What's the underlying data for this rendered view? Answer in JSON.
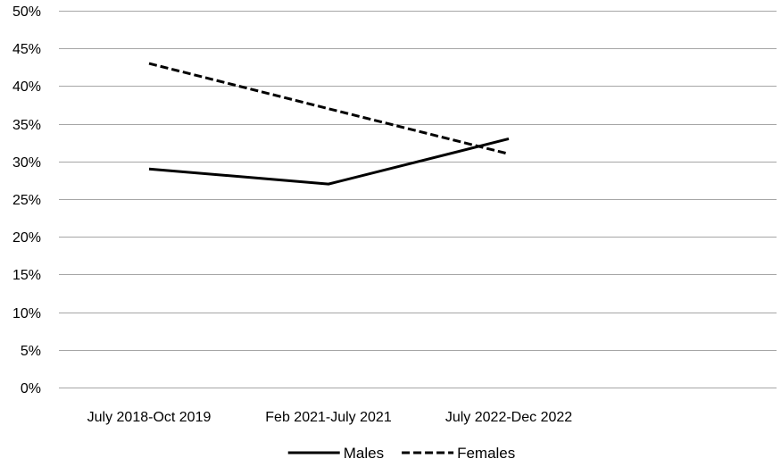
{
  "chart_data": {
    "type": "line",
    "categories": [
      "July 2018-Oct 2019",
      "Feb 2021-July 2021",
      "July 2022-Dec 2022"
    ],
    "series": [
      {
        "name": "Males",
        "values": [
          29,
          27,
          33
        ],
        "color": "#000000",
        "dash": "solid"
      },
      {
        "name": "Females",
        "values": [
          43,
          37,
          31
        ],
        "color": "#000000",
        "dash": "dashed"
      }
    ],
    "yticks": [
      "0%",
      "5%",
      "10%",
      "15%",
      "20%",
      "25%",
      "30%",
      "35%",
      "40%",
      "45%",
      "50%"
    ],
    "ylim": [
      0,
      50
    ],
    "grid": true,
    "legend_position": "bottom",
    "gridline_color": "#a6a6a6"
  }
}
